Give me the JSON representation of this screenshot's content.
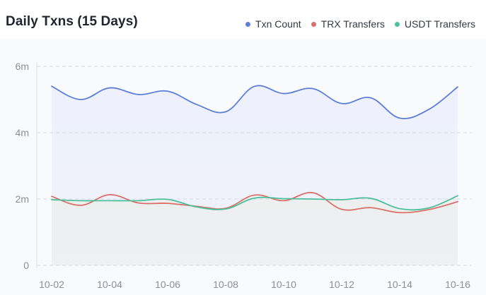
{
  "title": "Daily Txns (15 Days)",
  "legend": [
    {
      "label": "Txn Count",
      "color": "#5b7fd8"
    },
    {
      "label": "TRX Transfers",
      "color": "#d9706a"
    },
    {
      "label": "USDT Transfers",
      "color": "#4cc09a"
    }
  ],
  "chart_data": {
    "type": "line",
    "x": [
      "10-02",
      "10-03",
      "10-04",
      "10-05",
      "10-06",
      "10-07",
      "10-08",
      "10-09",
      "10-10",
      "10-11",
      "10-12",
      "10-13",
      "10-14",
      "10-15",
      "10-16"
    ],
    "x_tick_labels": [
      "10-02",
      "10-04",
      "10-06",
      "10-08",
      "10-10",
      "10-12",
      "10-14",
      "10-16"
    ],
    "y_tick_labels": [
      "0",
      "2m",
      "4m",
      "6m"
    ],
    "ylim": [
      0,
      6000000
    ],
    "grid": "horizontal dashed",
    "legend_position": "top-right",
    "series": [
      {
        "name": "Txn Count",
        "color": "#5b7fd8",
        "fill": "#eef1fb",
        "values": [
          5400000,
          5000000,
          5350000,
          5150000,
          5250000,
          4850000,
          4630000,
          5400000,
          5180000,
          5330000,
          4880000,
          5050000,
          4440000,
          4700000,
          5380000
        ]
      },
      {
        "name": "TRX Transfers",
        "color": "#d9706a",
        "values": [
          2080000,
          1810000,
          2130000,
          1880000,
          1870000,
          1780000,
          1720000,
          2120000,
          1950000,
          2190000,
          1690000,
          1740000,
          1590000,
          1680000,
          1920000
        ]
      },
      {
        "name": "USDT Transfers",
        "color": "#4cc09a",
        "fill": "#eeefef",
        "values": [
          1980000,
          1950000,
          1950000,
          1950000,
          1990000,
          1760000,
          1700000,
          2030000,
          2010000,
          2000000,
          1980000,
          2020000,
          1710000,
          1730000,
          2100000
        ]
      }
    ]
  }
}
